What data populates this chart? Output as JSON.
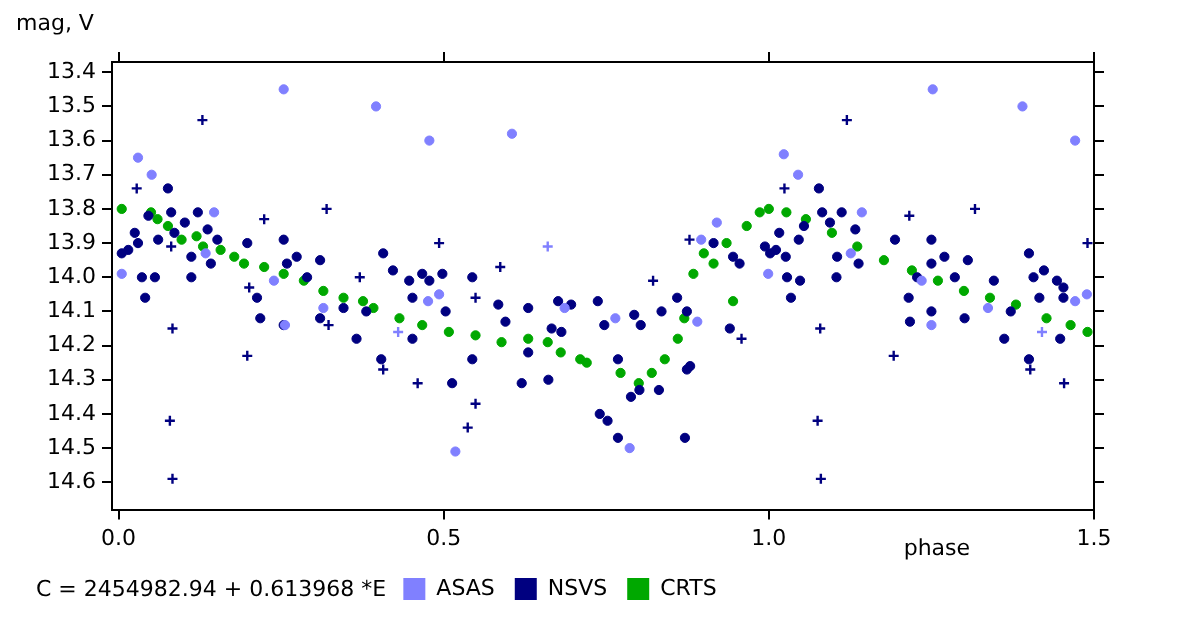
{
  "chart_data": {
    "type": "scatter",
    "ylabel": "mag, V",
    "xlabel": "phase",
    "annotations": [
      "C = 2454982.94 + 0.613968 *E"
    ],
    "xlim": [
      -0.01,
      1.5
    ],
    "ylim": [
      14.68,
      13.37
    ],
    "xticks": [
      {
        "value": 0,
        "label": "0.0"
      },
      {
        "value": 0.5,
        "label": "0.5"
      },
      {
        "value": 1,
        "label": "1.0"
      },
      {
        "value": 1.5,
        "label": "1.5"
      }
    ],
    "yticks": [
      13.4,
      13.5,
      13.6,
      13.7,
      13.8,
      13.9,
      {
        "value": 14,
        "label": "14.0"
      },
      14.1,
      14.2,
      14.3,
      14.4,
      14.5,
      14.6
    ],
    "grid": false,
    "legend": "bottom",
    "marker": "circle",
    "series": [
      {
        "name": "ASAS",
        "color": "#8080ff",
        "x": [
          0.005,
          0.03,
          0.051,
          0.134,
          0.147,
          0.254,
          0.256,
          0.239,
          0.396,
          0.478,
          0.493,
          0.476,
          0.518,
          0.605,
          0.686,
          0.315,
          0.764,
          0.786,
          0.89,
          0.896,
          0.92,
          0.999,
          1.023,
          1.045,
          1.143,
          1.126,
          1.252,
          1.235,
          1.25,
          1.337,
          1.39,
          1.471,
          1.489,
          1.471
        ],
        "values": [
          13.99,
          13.65,
          13.7,
          13.93,
          13.81,
          13.45,
          14.14,
          14.01,
          13.5,
          13.6,
          14.05,
          14.07,
          14.51,
          13.58,
          14.09,
          14.09,
          14.12,
          14.5,
          14.13,
          13.89,
          13.84,
          13.99,
          13.64,
          13.7,
          13.81,
          13.93,
          13.45,
          14.01,
          14.14,
          14.09,
          13.5,
          13.6,
          14.05,
          14.07
        ]
      },
      {
        "name": "NSVS",
        "color": "#000080",
        "x": [
          0.005,
          0.015,
          0.025,
          0.03,
          0.036,
          0.041,
          0.046,
          0.056,
          0.061,
          0.076,
          0.081,
          0.086,
          0.102,
          0.112,
          0.112,
          0.122,
          0.137,
          0.142,
          0.152,
          0.198,
          0.213,
          0.218,
          0.254,
          0.254,
          0.259,
          0.274,
          0.29,
          0.31,
          0.31,
          0.346,
          0.366,
          0.381,
          0.407,
          0.404,
          0.422,
          0.447,
          0.452,
          0.452,
          0.467,
          0.478,
          0.498,
          0.503,
          0.513,
          0.544,
          0.544,
          0.584,
          0.595,
          0.62,
          0.63,
          0.63,
          0.661,
          0.666,
          0.676,
          0.681,
          0.696,
          0.737,
          0.747,
          0.768,
          0.74,
          0.752,
          0.768,
          0.793,
          0.803,
          0.788,
          0.801,
          0.831,
          0.835,
          0.859,
          0.871,
          0.874,
          0.879,
          0.874,
          0.915,
          0.94,
          0.945,
          0.955,
          0.994,
          1.002,
          1.011,
          1.016,
          1.026,
          1.028,
          1.034,
          1.046,
          1.048,
          1.054,
          1.077,
          1.082,
          1.094,
          1.105,
          1.104,
          1.112,
          1.133,
          1.138,
          1.194,
          1.215,
          1.217,
          1.228,
          1.25,
          1.25,
          1.25,
          1.27,
          1.286,
          1.301,
          1.306,
          1.346,
          1.362,
          1.372,
          1.4,
          1.4,
          1.407,
          1.416,
          1.423,
          1.443,
          1.453,
          1.448,
          1.453
        ],
        "values": [
          13.93,
          13.92,
          13.87,
          13.9,
          14,
          14.06,
          13.82,
          14,
          13.89,
          13.74,
          13.81,
          13.87,
          13.84,
          13.94,
          14,
          13.81,
          13.86,
          13.96,
          13.89,
          13.9,
          14.06,
          14.12,
          13.89,
          14.14,
          13.96,
          13.94,
          14,
          13.95,
          14.12,
          14.09,
          14.18,
          14.1,
          13.93,
          14.24,
          13.98,
          14.01,
          14.06,
          14.18,
          13.99,
          14.01,
          13.99,
          14.1,
          14.31,
          14,
          14.24,
          14.08,
          14.13,
          14.31,
          14.09,
          14.22,
          14.3,
          14.15,
          14.07,
          14.16,
          14.08,
          14.07,
          14.14,
          14.24,
          14.4,
          14.42,
          14.47,
          14.11,
          14.14,
          14.35,
          14.33,
          14.33,
          14.1,
          14.06,
          14.47,
          14.27,
          14.26,
          14.1,
          13.9,
          14.15,
          13.94,
          13.96,
          13.91,
          13.93,
          13.92,
          13.87,
          13.94,
          14,
          14.06,
          13.89,
          14.01,
          13.85,
          13.74,
          13.81,
          13.84,
          13.94,
          14,
          13.81,
          13.86,
          13.96,
          13.89,
          14.06,
          14.13,
          14,
          13.89,
          14.1,
          13.96,
          13.94,
          14,
          14.12,
          13.95,
          14.01,
          14.18,
          14.1,
          14.24,
          13.93,
          14,
          14.06,
          13.98,
          14.01,
          14.06,
          14.18,
          14.03
        ]
      },
      {
        "name": "CRTS",
        "color": "#00a800",
        "x": [
          0.005,
          0.05,
          0.06,
          0.076,
          0.097,
          0.12,
          0.13,
          0.157,
          0.178,
          0.193,
          0.224,
          0.254,
          0.285,
          0.315,
          0.346,
          0.376,
          0.392,
          0.432,
          0.467,
          0.508,
          0.549,
          0.589,
          0.63,
          0.66,
          0.68,
          0.71,
          0.72,
          0.772,
          0.8,
          0.82,
          0.84,
          0.86,
          0.87,
          0.884,
          0.9,
          0.915,
          0.935,
          0.945,
          0.966,
          0.986,
          1,
          1.027,
          1.057,
          1.097,
          1.136,
          1.177,
          1.22,
          1.26,
          1.3,
          1.34,
          1.38,
          1.427,
          1.464,
          1.49
        ],
        "values": [
          13.8,
          13.81,
          13.83,
          13.85,
          13.89,
          13.88,
          13.91,
          13.92,
          13.94,
          13.96,
          13.97,
          13.99,
          14.01,
          14.04,
          14.06,
          14.07,
          14.09,
          14.12,
          14.14,
          14.16,
          14.17,
          14.19,
          14.18,
          14.19,
          14.22,
          14.24,
          14.25,
          14.28,
          14.31,
          14.28,
          14.24,
          14.18,
          14.12,
          13.99,
          13.93,
          13.96,
          13.9,
          14.07,
          13.85,
          13.81,
          13.8,
          13.81,
          13.83,
          13.87,
          13.91,
          13.95,
          13.98,
          14.01,
          14.04,
          14.06,
          14.08,
          14.12,
          14.14,
          14.16
        ]
      },
      {
        "color": "#000080",
        "marker": "cross",
        "x": [
          0.129,
          0.028,
          0.081,
          0.083,
          0.079,
          0.083,
          0.224,
          0.198,
          0.32,
          0.201,
          0.407,
          0.46,
          0.493,
          0.549,
          0.549,
          0.537,
          0.587,
          0.371,
          0.323,
          1.12,
          1.024,
          1.079,
          1.075,
          1.08,
          1.216,
          1.192,
          1.317,
          1.402,
          1.454,
          1.49,
          0.878,
          0.822,
          0.958
        ],
        "values": [
          13.54,
          13.74,
          13.91,
          14.15,
          14.42,
          14.59,
          13.83,
          14.23,
          13.8,
          14.03,
          14.27,
          14.31,
          13.9,
          14.06,
          14.37,
          14.44,
          13.97,
          14,
          14.14,
          13.54,
          13.74,
          14.15,
          14.42,
          14.59,
          13.82,
          14.23,
          13.8,
          14.27,
          14.31,
          13.9,
          13.89,
          14.01,
          14.18
        ]
      },
      {
        "color": "#8080ff",
        "marker": "cross",
        "x": [
          0.66,
          0.43,
          1.42
        ],
        "values": [
          13.91,
          14.16,
          14.16
        ]
      }
    ]
  }
}
